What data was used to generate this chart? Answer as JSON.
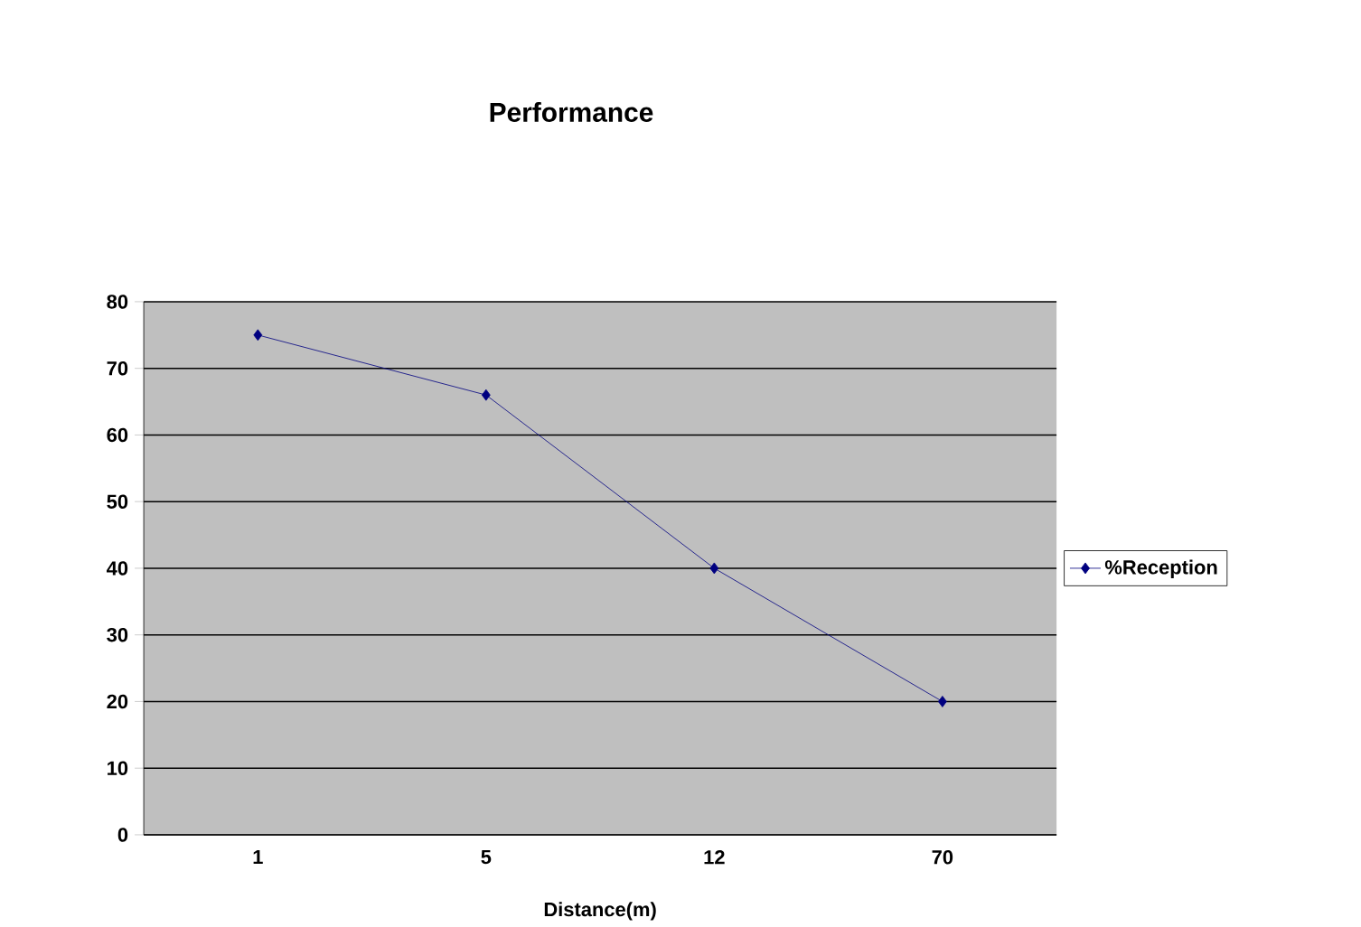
{
  "chart_data": {
    "type": "line",
    "title": "Performance",
    "xlabel": "Distance(m)",
    "categories": [
      "1",
      "5",
      "12",
      "70"
    ],
    "series": [
      {
        "name": "%Reception",
        "color": "#000080",
        "values": [
          75,
          66,
          40,
          20
        ]
      }
    ],
    "ylim": [
      0,
      80
    ],
    "yticks": [
      0,
      10,
      20,
      30,
      40,
      50,
      60,
      70,
      80
    ],
    "grid": "y",
    "legend": "right",
    "marker": "diamond"
  }
}
